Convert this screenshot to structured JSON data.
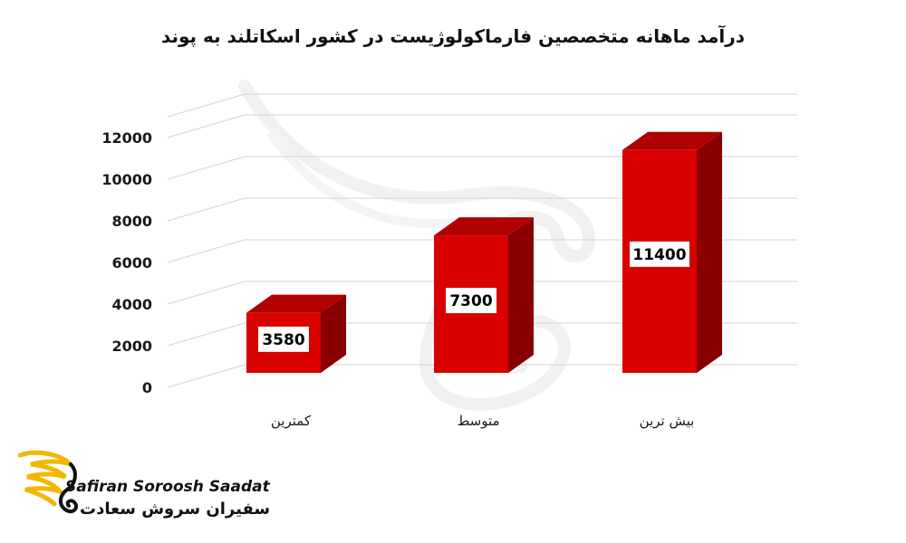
{
  "chart_data": {
    "type": "bar",
    "title": "درآمد ماهانه متخصصین فارماکولوژیست در کشور اسکاتلند به پوند",
    "categories": [
      "کمترین",
      "متوسط",
      "بیش ترین"
    ],
    "values": [
      3580,
      7300,
      11400
    ],
    "data_labels": [
      "3580",
      "7300",
      "11400"
    ],
    "y_ticks": [
      "0",
      "2000",
      "4000",
      "6000",
      "8000",
      "10000",
      "12000"
    ],
    "ylim": [
      0,
      12000
    ],
    "grid": true,
    "style": "3d-column",
    "colors": {
      "front": "#d90000",
      "side": "#8a0000",
      "top": "#b00000",
      "grid": "#d4d4d4"
    }
  },
  "brand": {
    "name_en": "Safiran Soroosh Saadat",
    "name_fa": "سفیران سروش سعادت",
    "logo_icon": "golden-wing-swan-icon",
    "logo_color": "#f2b705"
  }
}
